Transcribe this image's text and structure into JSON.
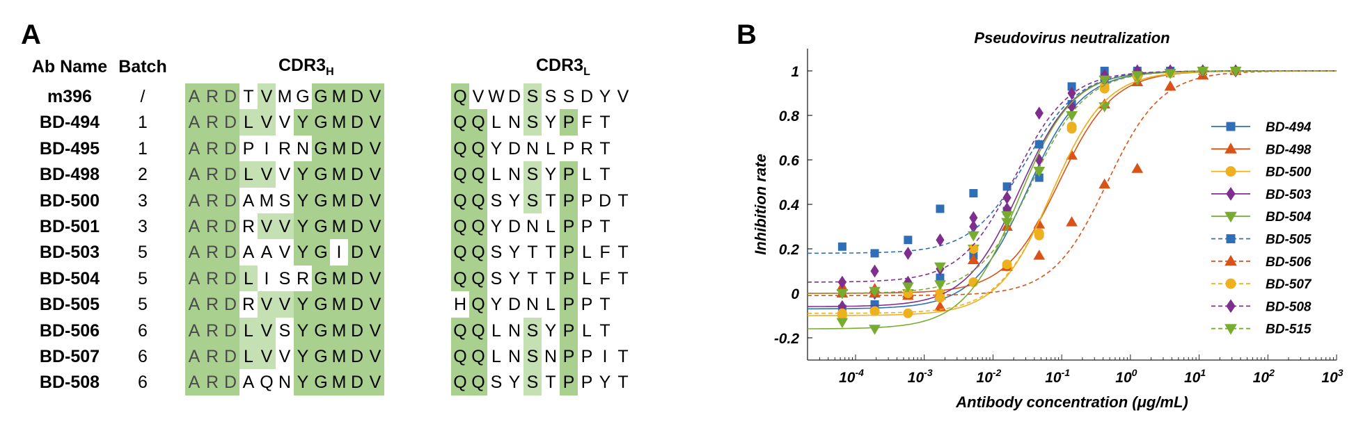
{
  "panel_a": {
    "letter": "A",
    "col_name": "Ab Name",
    "col_batch": "Batch",
    "cdr3h_label": "CDR3",
    "cdr3h_sub": "H",
    "cdr3l_label": "CDR3",
    "cdr3l_sub": "L",
    "colors": {
      "strong": "#a9d08e",
      "light": "#c5e0b3",
      "none": "#ffffff"
    },
    "rows": [
      {
        "name": "m396",
        "batch": "/",
        "heavy": [
          "A",
          "R",
          "D",
          "T",
          "V",
          "M",
          "G",
          "G",
          "M",
          "D",
          "V"
        ],
        "heavy_shade": [
          3,
          3,
          3,
          1,
          2,
          1,
          1,
          3,
          3,
          3,
          3
        ],
        "light": [
          "Q",
          "V",
          "W",
          "D",
          "S",
          "S",
          "S",
          "D",
          "Y",
          "V"
        ],
        "light_shade": [
          3,
          1,
          1,
          1,
          2,
          1,
          1,
          1,
          1,
          1
        ]
      },
      {
        "name": "BD-494",
        "batch": "1",
        "heavy": [
          "A",
          "R",
          "D",
          "L",
          "V",
          "V",
          "Y",
          "G",
          "M",
          "D",
          "V"
        ],
        "heavy_shade": [
          3,
          3,
          3,
          2,
          2,
          1,
          3,
          3,
          3,
          3,
          3
        ],
        "light": [
          "Q",
          "Q",
          "L",
          "N",
          "S",
          "Y",
          "P",
          "F",
          "T"
        ],
        "light_shade": [
          3,
          3,
          1,
          1,
          2,
          1,
          3,
          1,
          1
        ]
      },
      {
        "name": "BD-495",
        "batch": "1",
        "heavy": [
          "A",
          "R",
          "D",
          "P",
          "I",
          "R",
          "N",
          "G",
          "M",
          "D",
          "V"
        ],
        "heavy_shade": [
          3,
          3,
          3,
          1,
          1,
          1,
          1,
          3,
          3,
          3,
          3
        ],
        "light": [
          "Q",
          "Q",
          "Y",
          "D",
          "N",
          "L",
          "P",
          "R",
          "T"
        ],
        "light_shade": [
          3,
          3,
          1,
          1,
          1,
          1,
          1,
          1,
          1
        ]
      },
      {
        "name": "BD-498",
        "batch": "2",
        "heavy": [
          "A",
          "R",
          "D",
          "L",
          "V",
          "V",
          "Y",
          "G",
          "M",
          "D",
          "V"
        ],
        "heavy_shade": [
          3,
          3,
          3,
          2,
          2,
          1,
          3,
          3,
          3,
          3,
          3
        ],
        "light": [
          "Q",
          "Q",
          "L",
          "N",
          "S",
          "Y",
          "P",
          "L",
          "T"
        ],
        "light_shade": [
          3,
          3,
          1,
          1,
          2,
          1,
          3,
          1,
          1
        ]
      },
      {
        "name": "BD-500",
        "batch": "3",
        "heavy": [
          "A",
          "R",
          "D",
          "A",
          "M",
          "S",
          "Y",
          "G",
          "M",
          "D",
          "V"
        ],
        "heavy_shade": [
          3,
          3,
          3,
          1,
          1,
          1,
          3,
          3,
          3,
          3,
          3
        ],
        "light": [
          "Q",
          "Q",
          "S",
          "Y",
          "S",
          "T",
          "P",
          "P",
          "D",
          "T"
        ],
        "light_shade": [
          3,
          3,
          1,
          1,
          2,
          1,
          3,
          1,
          1,
          1
        ]
      },
      {
        "name": "BD-501",
        "batch": "3",
        "heavy": [
          "A",
          "R",
          "D",
          "R",
          "V",
          "V",
          "Y",
          "G",
          "M",
          "D",
          "V"
        ],
        "heavy_shade": [
          3,
          3,
          3,
          1,
          2,
          2,
          3,
          3,
          3,
          3,
          3
        ],
        "light": [
          "Q",
          "Q",
          "Y",
          "D",
          "N",
          "L",
          "P",
          "P",
          "T"
        ],
        "light_shade": [
          3,
          3,
          1,
          1,
          1,
          1,
          3,
          1,
          1
        ]
      },
      {
        "name": "BD-503",
        "batch": "5",
        "heavy": [
          "A",
          "R",
          "D",
          "A",
          "A",
          "V",
          "Y",
          "G",
          "I",
          "D",
          "V"
        ],
        "heavy_shade": [
          3,
          3,
          3,
          1,
          1,
          1,
          3,
          3,
          1,
          3,
          3
        ],
        "light": [
          "Q",
          "Q",
          "S",
          "Y",
          "T",
          "T",
          "P",
          "L",
          "F",
          "T"
        ],
        "light_shade": [
          3,
          3,
          1,
          1,
          1,
          1,
          3,
          1,
          1,
          1
        ]
      },
      {
        "name": "BD-504",
        "batch": "5",
        "heavy": [
          "A",
          "R",
          "D",
          "L",
          "I",
          "S",
          "R",
          "G",
          "M",
          "D",
          "V"
        ],
        "heavy_shade": [
          3,
          3,
          3,
          2,
          1,
          1,
          1,
          3,
          3,
          3,
          3
        ],
        "light": [
          "Q",
          "Q",
          "S",
          "Y",
          "T",
          "T",
          "P",
          "L",
          "F",
          "T"
        ],
        "light_shade": [
          3,
          3,
          1,
          1,
          1,
          1,
          3,
          1,
          1,
          1
        ]
      },
      {
        "name": "BD-505",
        "batch": "5",
        "heavy": [
          "A",
          "R",
          "D",
          "R",
          "V",
          "V",
          "Y",
          "G",
          "M",
          "D",
          "V"
        ],
        "heavy_shade": [
          3,
          3,
          3,
          1,
          2,
          2,
          3,
          3,
          3,
          3,
          3
        ],
        "light": [
          "H",
          "Q",
          "Y",
          "D",
          "N",
          "L",
          "P",
          "P",
          "T"
        ],
        "light_shade": [
          1,
          3,
          1,
          1,
          1,
          1,
          3,
          1,
          1
        ]
      },
      {
        "name": "BD-506",
        "batch": "6",
        "heavy": [
          "A",
          "R",
          "D",
          "L",
          "V",
          "S",
          "Y",
          "G",
          "M",
          "D",
          "V"
        ],
        "heavy_shade": [
          3,
          3,
          3,
          2,
          2,
          1,
          3,
          3,
          3,
          3,
          3
        ],
        "light": [
          "Q",
          "Q",
          "L",
          "N",
          "S",
          "Y",
          "P",
          "L",
          "T"
        ],
        "light_shade": [
          3,
          3,
          1,
          1,
          2,
          1,
          3,
          1,
          1
        ]
      },
      {
        "name": "BD-507",
        "batch": "6",
        "heavy": [
          "A",
          "R",
          "D",
          "L",
          "V",
          "V",
          "Y",
          "G",
          "M",
          "D",
          "V"
        ],
        "heavy_shade": [
          3,
          3,
          3,
          2,
          2,
          1,
          3,
          3,
          3,
          3,
          3
        ],
        "light": [
          "Q",
          "Q",
          "L",
          "N",
          "S",
          "N",
          "P",
          "P",
          "I",
          "T"
        ],
        "light_shade": [
          3,
          3,
          1,
          1,
          2,
          1,
          3,
          1,
          1,
          1
        ]
      },
      {
        "name": "BD-508",
        "batch": "6",
        "heavy": [
          "A",
          "R",
          "D",
          "A",
          "Q",
          "N",
          "Y",
          "G",
          "M",
          "D",
          "V"
        ],
        "heavy_shade": [
          3,
          3,
          3,
          1,
          1,
          1,
          3,
          3,
          3,
          3,
          3
        ],
        "light": [
          "Q",
          "Q",
          "S",
          "Y",
          "S",
          "T",
          "P",
          "P",
          "Y",
          "T"
        ],
        "light_shade": [
          3,
          3,
          1,
          1,
          2,
          1,
          3,
          1,
          1,
          1
        ]
      }
    ]
  },
  "panel_b": {
    "letter": "B"
  },
  "chart_data": {
    "type": "scatter",
    "title": "Pseudovirus neutralization",
    "xlabel": "Antibody concentration (μg/mL)",
    "ylabel": "Inhibition rate",
    "x_scale": "log",
    "xlim": [
      2e-05,
      1000
    ],
    "ylim": [
      -0.3,
      1.1
    ],
    "x_ticks": [
      0.0001,
      0.001,
      0.01,
      0.1,
      1,
      10,
      100,
      1000
    ],
    "x_tick_labels": [
      "10^-4",
      "10^-3",
      "10^-2",
      "10^-1",
      "10^0",
      "10^1",
      "10^2",
      "10^3"
    ],
    "y_ticks": [
      -0.2,
      0,
      0.2,
      0.4,
      0.6,
      0.8,
      1
    ],
    "y_tick_labels": [
      "-0.2",
      "0",
      "0.2",
      "0.4",
      "0.6",
      "0.8",
      "1"
    ],
    "grid": false,
    "legend_position": "right",
    "x": [
      6.4e-05,
      0.00019,
      0.00058,
      0.0017,
      0.0052,
      0.016,
      0.047,
      0.14,
      0.42,
      1.26,
      3.8,
      11.3,
      34
    ],
    "series": [
      {
        "name": "BD-494",
        "color": "#2f6fb8",
        "marker": "square",
        "dash": false,
        "values": [
          -0.07,
          -0.05,
          0.0,
          0.07,
          0.17,
          0.37,
          0.52,
          0.85,
          0.97,
          0.99,
          0.99,
          1.0,
          1.0
        ]
      },
      {
        "name": "BD-498",
        "color": "#d95319",
        "marker": "triangle",
        "dash": false,
        "values": [
          0.03,
          0.02,
          0.0,
          -0.01,
          0.15,
          0.3,
          0.31,
          0.62,
          0.85,
          0.95,
          0.93,
          0.98,
          1.0
        ]
      },
      {
        "name": "BD-500",
        "color": "#edb120",
        "marker": "circle",
        "dash": false,
        "values": [
          -0.1,
          -0.08,
          -0.09,
          0.0,
          0.05,
          0.12,
          0.27,
          0.74,
          0.93,
          0.98,
          0.99,
          1.0,
          1.0
        ]
      },
      {
        "name": "BD-503",
        "color": "#7e2f8e",
        "marker": "diamond",
        "dash": false,
        "values": [
          -0.06,
          0.0,
          0.05,
          0.11,
          0.3,
          0.38,
          0.6,
          0.84,
          0.96,
          0.99,
          1.0,
          1.0,
          1.0
        ]
      },
      {
        "name": "BD-504",
        "color": "#77ac30",
        "marker": "triangle-down",
        "dash": false,
        "values": [
          -0.13,
          -0.16,
          0.0,
          0.04,
          0.2,
          0.35,
          0.55,
          0.8,
          0.84,
          0.96,
          0.99,
          1.0,
          1.0
        ]
      },
      {
        "name": "BD-505",
        "color": "#2f6fb8",
        "marker": "square",
        "dash": true,
        "values": [
          0.21,
          0.18,
          0.24,
          0.38,
          0.45,
          0.48,
          0.67,
          0.93,
          1.0,
          1.0,
          1.0,
          1.0,
          1.0
        ]
      },
      {
        "name": "BD-506",
        "color": "#d95319",
        "marker": "triangle",
        "dash": true,
        "values": [
          0.0,
          0.0,
          -0.01,
          -0.06,
          0.15,
          0.12,
          0.17,
          0.32,
          0.49,
          0.56,
          0.93,
          0.98,
          1.0
        ]
      },
      {
        "name": "BD-507",
        "color": "#edb120",
        "marker": "circle",
        "dash": true,
        "values": [
          -0.09,
          -0.08,
          0.0,
          -0.02,
          0.2,
          0.13,
          0.26,
          0.75,
          0.92,
          0.98,
          0.99,
          1.0,
          1.0
        ]
      },
      {
        "name": "BD-508",
        "color": "#7e2f8e",
        "marker": "diamond",
        "dash": true,
        "values": [
          0.05,
          0.1,
          0.18,
          0.24,
          0.34,
          0.43,
          0.81,
          0.9,
          0.98,
          1.0,
          1.0,
          1.0,
          1.0
        ]
      },
      {
        "name": "BD-515",
        "color": "#77ac30",
        "marker": "triangle-down",
        "dash": true,
        "values": [
          0.0,
          0.01,
          0.03,
          0.12,
          0.26,
          0.32,
          0.55,
          0.8,
          0.96,
          0.98,
          0.99,
          1.0,
          1.0
        ]
      }
    ]
  }
}
